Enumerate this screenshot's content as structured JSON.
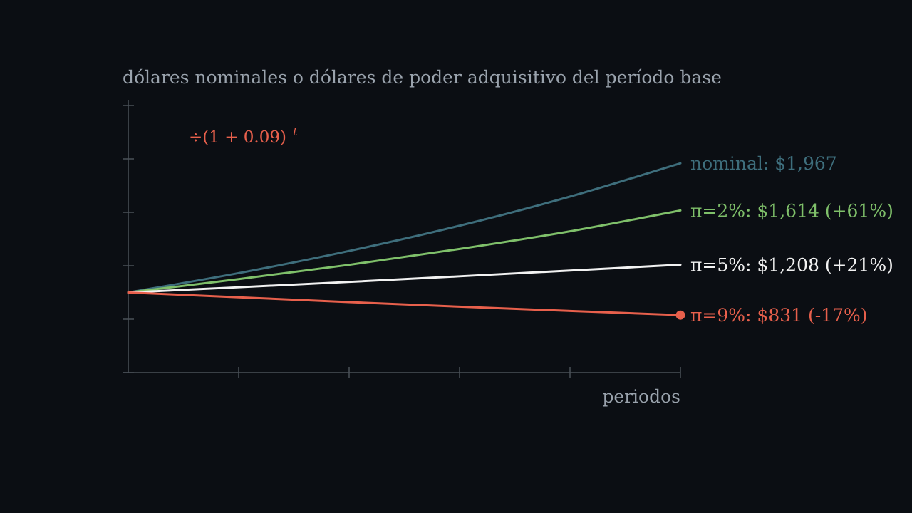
{
  "chart_data": {
    "type": "line",
    "ylabel": "dólares nominales o dólares de poder adquisitivo del período base",
    "xlabel": "periodos",
    "x": [
      0,
      1,
      2,
      3,
      4,
      5
    ],
    "ylim": [
      400,
      2400
    ],
    "y_ticks": 6,
    "grid": false,
    "formula": {
      "text": "÷(1 + 0.09)",
      "exponent": "t",
      "color": "#e8604c"
    },
    "series": [
      {
        "name": "nominal",
        "label": "nominal: $1,967",
        "color": "#3e6e7c",
        "values": [
          1000,
          1145,
          1311,
          1500,
          1718,
          1967
        ]
      },
      {
        "name": "π=2%",
        "label": "π=2%: $1,614 (+61%)",
        "color": "#7fc06a",
        "values": [
          1000,
          1100,
          1207,
          1326,
          1458,
          1614
        ]
      },
      {
        "name": "π=5%",
        "label": "π=5%: $1,208 (+21%)",
        "color": "#f2f2f2",
        "values": [
          1000,
          1039,
          1079,
          1121,
          1164,
          1208
        ]
      },
      {
        "name": "π=9%",
        "label": "π=9%: $831 (-17%)",
        "color": "#e8604c",
        "values": [
          1000,
          964,
          928,
          894,
          862,
          831
        ],
        "end_marker": true
      }
    ]
  }
}
